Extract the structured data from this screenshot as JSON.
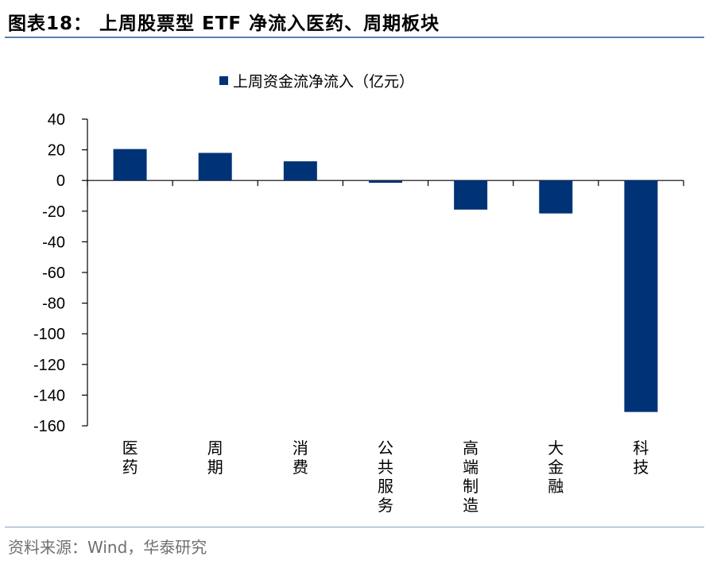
{
  "header": {
    "title": "图表18：  上周股票型 ETF 净流入医药、周期板块"
  },
  "footer": {
    "source": "资料来源：Wind，华泰研究"
  },
  "colors": {
    "bar": "#003376",
    "axis": "#000000",
    "rule": "#5b7fb0"
  },
  "chart_data": {
    "type": "bar",
    "categories": [
      "医药",
      "周期",
      "消费",
      "公共服务",
      "高端制造",
      "大金融",
      "科技"
    ],
    "series": [
      {
        "name": "上周资金流净流入（亿元）",
        "values": [
          20.5,
          18,
          12.5,
          -1.5,
          -19,
          -21.5,
          -151
        ]
      }
    ],
    "ylim": [
      -160,
      40
    ],
    "yticks": [
      40,
      20,
      0,
      -20,
      -40,
      -60,
      -80,
      -100,
      -120,
      -140,
      -160
    ],
    "legend_position": "top-center",
    "grid": false
  }
}
